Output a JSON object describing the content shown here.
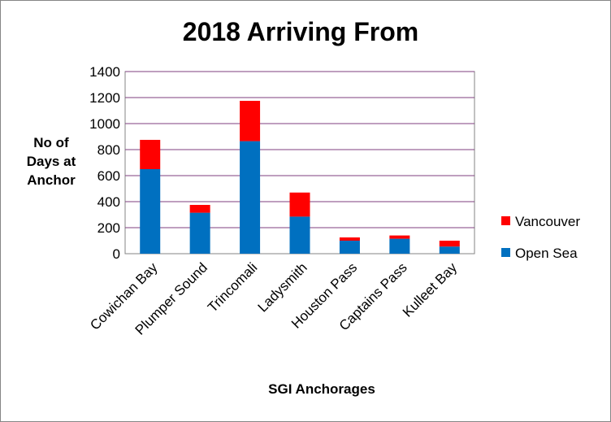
{
  "chart_data": {
    "type": "bar",
    "stacked": true,
    "title": "2018 Arriving From",
    "xlabel": "SGI Anchorages",
    "ylabel_lines": [
      "No of",
      "Days at",
      "Anchor"
    ],
    "ylim": [
      0,
      1400
    ],
    "yticks": [
      0,
      200,
      400,
      600,
      800,
      1000,
      1200,
      1400
    ],
    "grid": true,
    "legend_position": "right",
    "categories": [
      "Cowichan Bay",
      "Plumper Sound",
      "Trincomali",
      "Ladysmith",
      "Houston Pass",
      "Captains Pass",
      "Kulleet Bay"
    ],
    "series": [
      {
        "name": "Open Sea",
        "color": "#0070C0",
        "values": [
          650,
          315,
          865,
          285,
          100,
          115,
          55
        ]
      },
      {
        "name": "Vancouver",
        "color": "#FF0000",
        "values": [
          225,
          60,
          310,
          185,
          25,
          25,
          45
        ]
      }
    ]
  }
}
